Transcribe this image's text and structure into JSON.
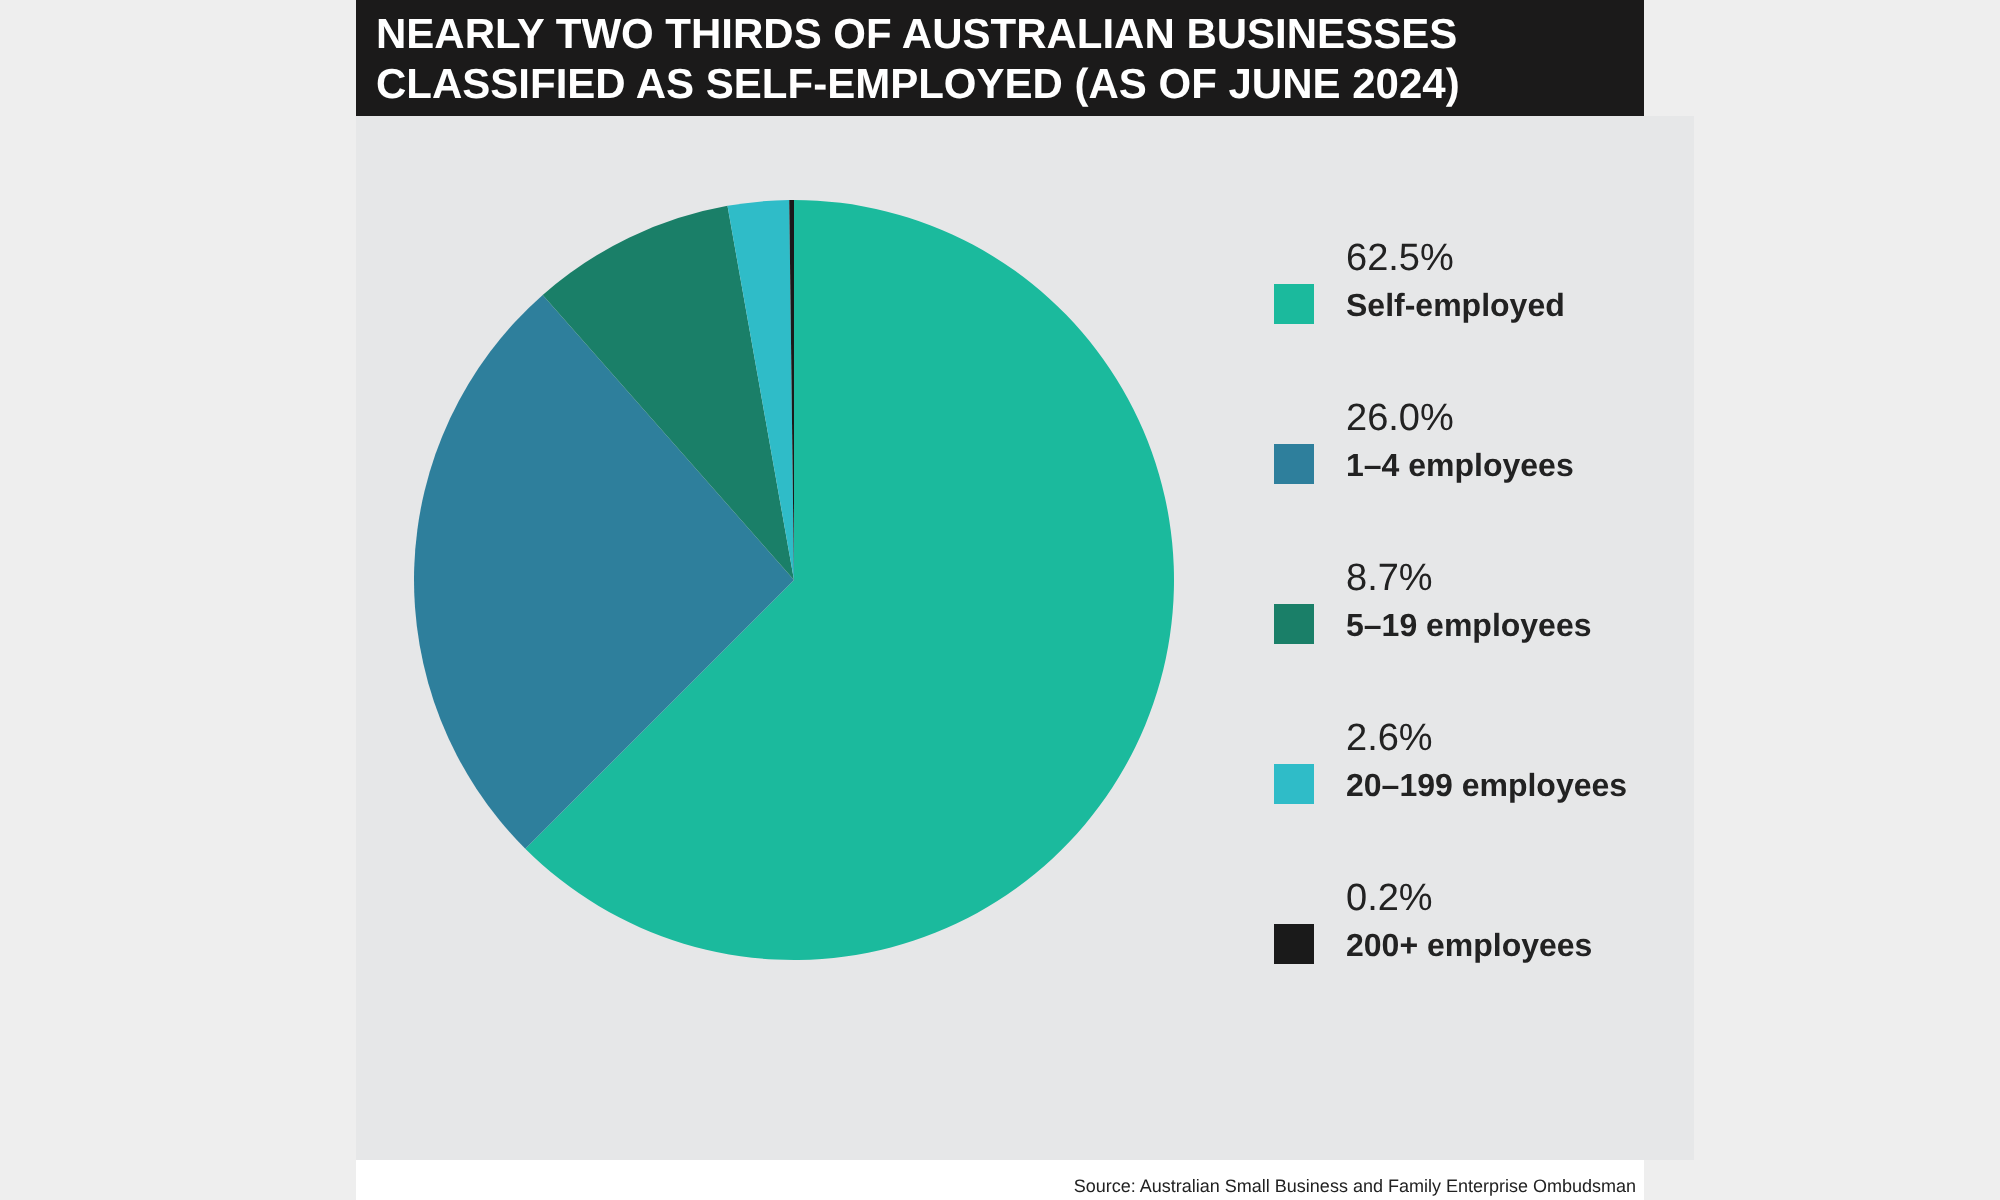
{
  "chart_data": {
    "type": "pie",
    "title": "NEARLY TWO THIRDS OF AUSTRALIAN BUSINESSES CLASSIFIED AS SELF-EMPLOYED (AS OF JUNE 2024)",
    "categories": [
      "Self-employed",
      "1–4 employees",
      "5–19 employees",
      "20–199 employees",
      "200+ employees"
    ],
    "values": [
      62.5,
      26.0,
      8.7,
      2.6,
      0.2
    ],
    "value_labels": [
      "62.5%",
      "26.0%",
      "8.7%",
      "2.6%",
      "0.2%"
    ],
    "colors": [
      "#1bba9d",
      "#2e7f9c",
      "#1a7f68",
      "#2fbcc8",
      "#1a1a1a"
    ],
    "legend": "right",
    "annotations": [
      "Source: Australian Small Business and Family Enterprise Ombudsman"
    ]
  }
}
